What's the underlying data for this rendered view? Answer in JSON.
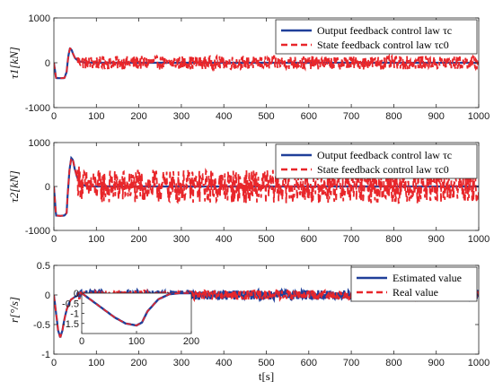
{
  "chart_data": [
    {
      "type": "line",
      "ylabel": "τ1[kN]",
      "xlim": [
        0,
        1000
      ],
      "ylim": [
        -1000,
        1000
      ],
      "xticks": [
        "0",
        "100",
        "200",
        "300",
        "400",
        "500",
        "600",
        "700",
        "800",
        "900",
        "1000"
      ],
      "yticks": [
        "-1000",
        "0",
        "1000"
      ],
      "legend_position": "top-right",
      "grid": false,
      "series": [
        {
          "name": "Output feedback control law τc",
          "color": "#1f3f99",
          "style": "solid",
          "x": [
            0,
            5,
            15,
            25,
            30,
            34,
            38,
            42,
            46,
            50,
            55,
            60,
            70,
            80,
            100,
            150,
            200,
            300,
            400,
            500,
            600,
            700,
            800,
            900,
            1000
          ],
          "y": [
            0,
            -340,
            -345,
            -340,
            -200,
            150,
            330,
            280,
            180,
            100,
            60,
            30,
            10,
            0,
            0,
            0,
            0,
            0,
            0,
            0,
            0,
            0,
            0,
            0,
            0
          ]
        },
        {
          "name": "State feedback control law τc0",
          "color": "#e8262a",
          "style": "dashed",
          "noise_amplitude": 150,
          "x": [
            0,
            5,
            15,
            25,
            30,
            34,
            38,
            42,
            46,
            50,
            55,
            60,
            70,
            80,
            100,
            150,
            200,
            300,
            400,
            500,
            600,
            700,
            800,
            900,
            1000
          ],
          "y": [
            0,
            -340,
            -345,
            -340,
            -200,
            150,
            330,
            280,
            180,
            100,
            60,
            30,
            10,
            0,
            0,
            0,
            0,
            0,
            0,
            0,
            0,
            0,
            0,
            0,
            0
          ]
        }
      ]
    },
    {
      "type": "line",
      "ylabel": "τ2[kN]",
      "xlim": [
        0,
        1000
      ],
      "ylim": [
        -1000,
        1000
      ],
      "xticks": [
        "0",
        "100",
        "200",
        "300",
        "400",
        "500",
        "600",
        "700",
        "800",
        "900",
        "1000"
      ],
      "yticks": [
        "-1000",
        "0",
        "1000"
      ],
      "legend_position": "top-right",
      "grid": false,
      "series": [
        {
          "name": "Output feedback control law τc",
          "color": "#1f3f99",
          "style": "solid",
          "x": [
            0,
            5,
            15,
            25,
            30,
            33,
            37,
            41,
            45,
            49,
            55,
            60,
            70,
            80,
            100,
            150,
            200,
            300,
            400,
            500,
            600,
            700,
            800,
            900,
            1000
          ],
          "y": [
            0,
            -660,
            -670,
            -660,
            -600,
            -100,
            400,
            650,
            600,
            400,
            200,
            100,
            30,
            0,
            0,
            0,
            0,
            0,
            0,
            0,
            0,
            0,
            0,
            0,
            0
          ]
        },
        {
          "name": "State feedback control law τc0",
          "color": "#e8262a",
          "style": "dashed",
          "noise_amplitude": 380,
          "x": [
            0,
            5,
            15,
            25,
            30,
            33,
            37,
            41,
            45,
            49,
            55,
            60,
            70,
            80,
            100,
            150,
            200,
            300,
            400,
            500,
            600,
            700,
            800,
            900,
            1000
          ],
          "y": [
            0,
            -660,
            -670,
            -660,
            -600,
            -100,
            400,
            650,
            600,
            400,
            200,
            100,
            30,
            0,
            0,
            0,
            0,
            0,
            0,
            0,
            0,
            0,
            0,
            0,
            0
          ]
        }
      ]
    },
    {
      "type": "line",
      "ylabel": "r[°/s]",
      "xlabel": "t[s]",
      "xlim": [
        0,
        1000
      ],
      "ylim": [
        -1,
        0.5
      ],
      "xticks": [
        "0",
        "100",
        "200",
        "300",
        "400",
        "500",
        "600",
        "700",
        "800",
        "900",
        "1000"
      ],
      "yticks": [
        "-1",
        "-0.5",
        "0",
        "0.5"
      ],
      "legend_position": "top-right",
      "grid": false,
      "series": [
        {
          "name": "Estimated value",
          "color": "#1f3f99",
          "style": "solid",
          "noise_amplitude": 0.08,
          "x": [
            0,
            5,
            10,
            15,
            20,
            25,
            30,
            35,
            40,
            50,
            60,
            70,
            80,
            100,
            150,
            200,
            300,
            400,
            500,
            600,
            700,
            800,
            900,
            1000
          ],
          "y": [
            0,
            -0.3,
            -0.6,
            -0.72,
            -0.6,
            -0.4,
            -0.25,
            -0.15,
            -0.08,
            -0.03,
            0,
            0,
            0,
            0,
            0,
            0,
            0,
            0,
            0,
            0,
            0,
            0,
            0,
            0
          ]
        },
        {
          "name": "Real value",
          "color": "#e8262a",
          "style": "dashed",
          "noise_amplitude": 0.08,
          "x": [
            0,
            5,
            10,
            15,
            20,
            25,
            30,
            35,
            40,
            50,
            60,
            70,
            80,
            100,
            150,
            200,
            300,
            400,
            500,
            600,
            700,
            800,
            900,
            1000
          ],
          "y": [
            0,
            -0.3,
            -0.6,
            -0.72,
            -0.6,
            -0.4,
            -0.25,
            -0.15,
            -0.08,
            -0.03,
            0,
            0,
            0,
            0,
            0,
            0,
            0,
            0,
            0,
            0,
            0,
            0,
            0,
            0
          ]
        }
      ],
      "inset": {
        "xlim": [
          0,
          200
        ],
        "ylim": [
          -2,
          0
        ],
        "xticks": [
          "0",
          "100",
          "200"
        ],
        "yticks": [
          "-1.5",
          "-1",
          "-0.5",
          "0"
        ],
        "x": [
          0,
          20,
          40,
          60,
          80,
          100,
          110,
          120,
          140,
          160,
          180,
          200
        ],
        "y": [
          0,
          -0.4,
          -0.8,
          -1.2,
          -1.5,
          -1.6,
          -1.45,
          -0.9,
          -0.3,
          -0.05,
          0,
          0
        ]
      }
    }
  ]
}
